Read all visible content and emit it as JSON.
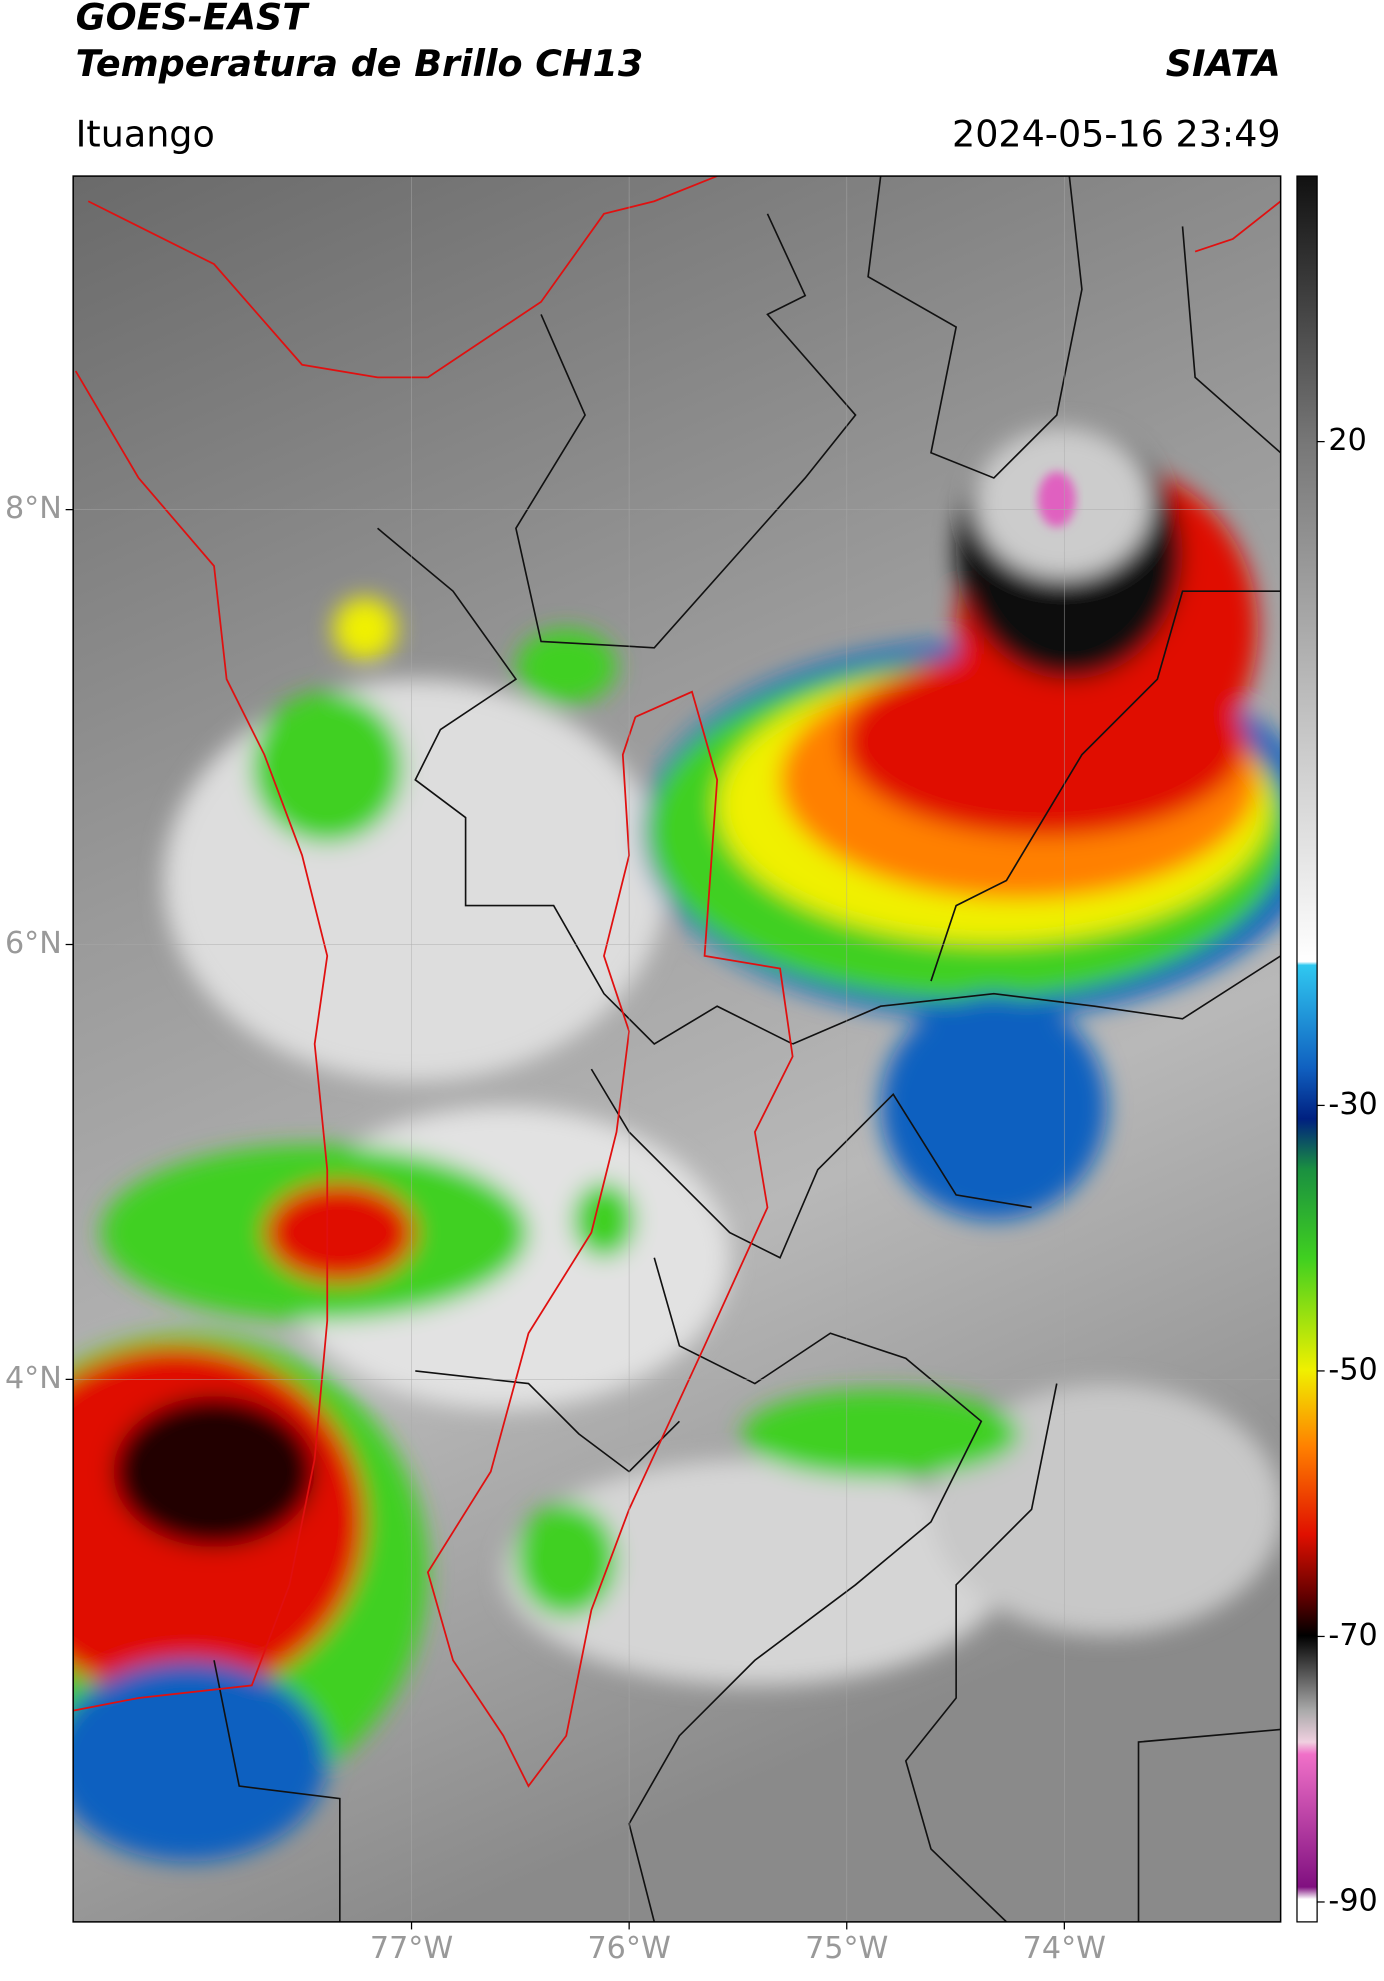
{
  "header": {
    "source": "GOES-EAST",
    "title": "Temperatura de Brillo CH13",
    "org": "SIATA",
    "location": "Ituango",
    "datetime": "2024-05-16 23:49"
  },
  "map": {
    "xlim": [
      -78.555,
      -73.006
    ],
    "ylim": [
      1.505,
      9.534
    ],
    "lat_ticks": [
      {
        "value": 8,
        "label": "8°N"
      },
      {
        "value": 6,
        "label": "6°N"
      },
      {
        "value": 4,
        "label": "4°N"
      }
    ],
    "lon_ticks": [
      {
        "value": -77,
        "label": "77°W"
      },
      {
        "value": -76,
        "label": "76°W"
      },
      {
        "value": -75,
        "label": "75°W"
      },
      {
        "value": -74,
        "label": "74°W"
      }
    ],
    "grid": true
  },
  "colorbar": {
    "lim": [
      -91.5,
      40
    ],
    "ticks": [
      20,
      -30,
      -50,
      -70,
      -90
    ]
  }
}
